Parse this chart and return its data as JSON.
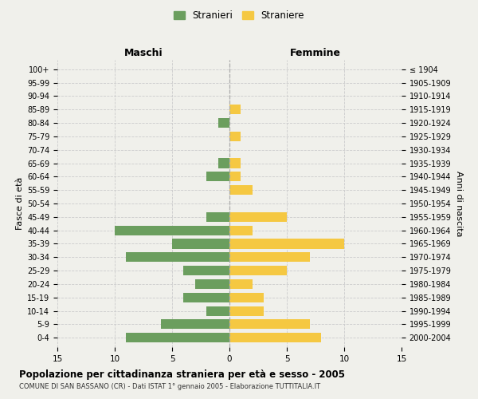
{
  "age_groups": [
    "0-4",
    "5-9",
    "10-14",
    "15-19",
    "20-24",
    "25-29",
    "30-34",
    "35-39",
    "40-44",
    "45-49",
    "50-54",
    "55-59",
    "60-64",
    "65-69",
    "70-74",
    "75-79",
    "80-84",
    "85-89",
    "90-94",
    "95-99",
    "100+"
  ],
  "birth_years": [
    "2000-2004",
    "1995-1999",
    "1990-1994",
    "1985-1989",
    "1980-1984",
    "1975-1979",
    "1970-1974",
    "1965-1969",
    "1960-1964",
    "1955-1959",
    "1950-1954",
    "1945-1949",
    "1940-1944",
    "1935-1939",
    "1930-1934",
    "1925-1929",
    "1920-1924",
    "1915-1919",
    "1910-1914",
    "1905-1909",
    "≤ 1904"
  ],
  "maschi": [
    9,
    6,
    2,
    4,
    3,
    4,
    9,
    5,
    10,
    2,
    0,
    0,
    2,
    1,
    0,
    0,
    1,
    0,
    0,
    0,
    0
  ],
  "femmine": [
    8,
    7,
    3,
    3,
    2,
    5,
    7,
    10,
    2,
    5,
    0,
    2,
    1,
    1,
    0,
    1,
    0,
    1,
    0,
    0,
    0
  ],
  "maschi_color": "#6b9e5e",
  "femmine_color": "#f5c842",
  "legend_maschi": "Stranieri",
  "legend_femmine": "Straniere",
  "xlabel_left": "Maschi",
  "xlabel_right": "Femmine",
  "ylabel_left": "Fasce di età",
  "ylabel_right": "Anni di nascita",
  "title": "Popolazione per cittadinanza straniera per età e sesso - 2005",
  "subtitle": "COMUNE DI SAN BASSANO (CR) - Dati ISTAT 1° gennaio 2005 - Elaborazione TUTTITALIA.IT",
  "xlim": 15,
  "background_color": "#f0f0eb",
  "grid_color": "#cccccc",
  "bar_height": 0.72
}
